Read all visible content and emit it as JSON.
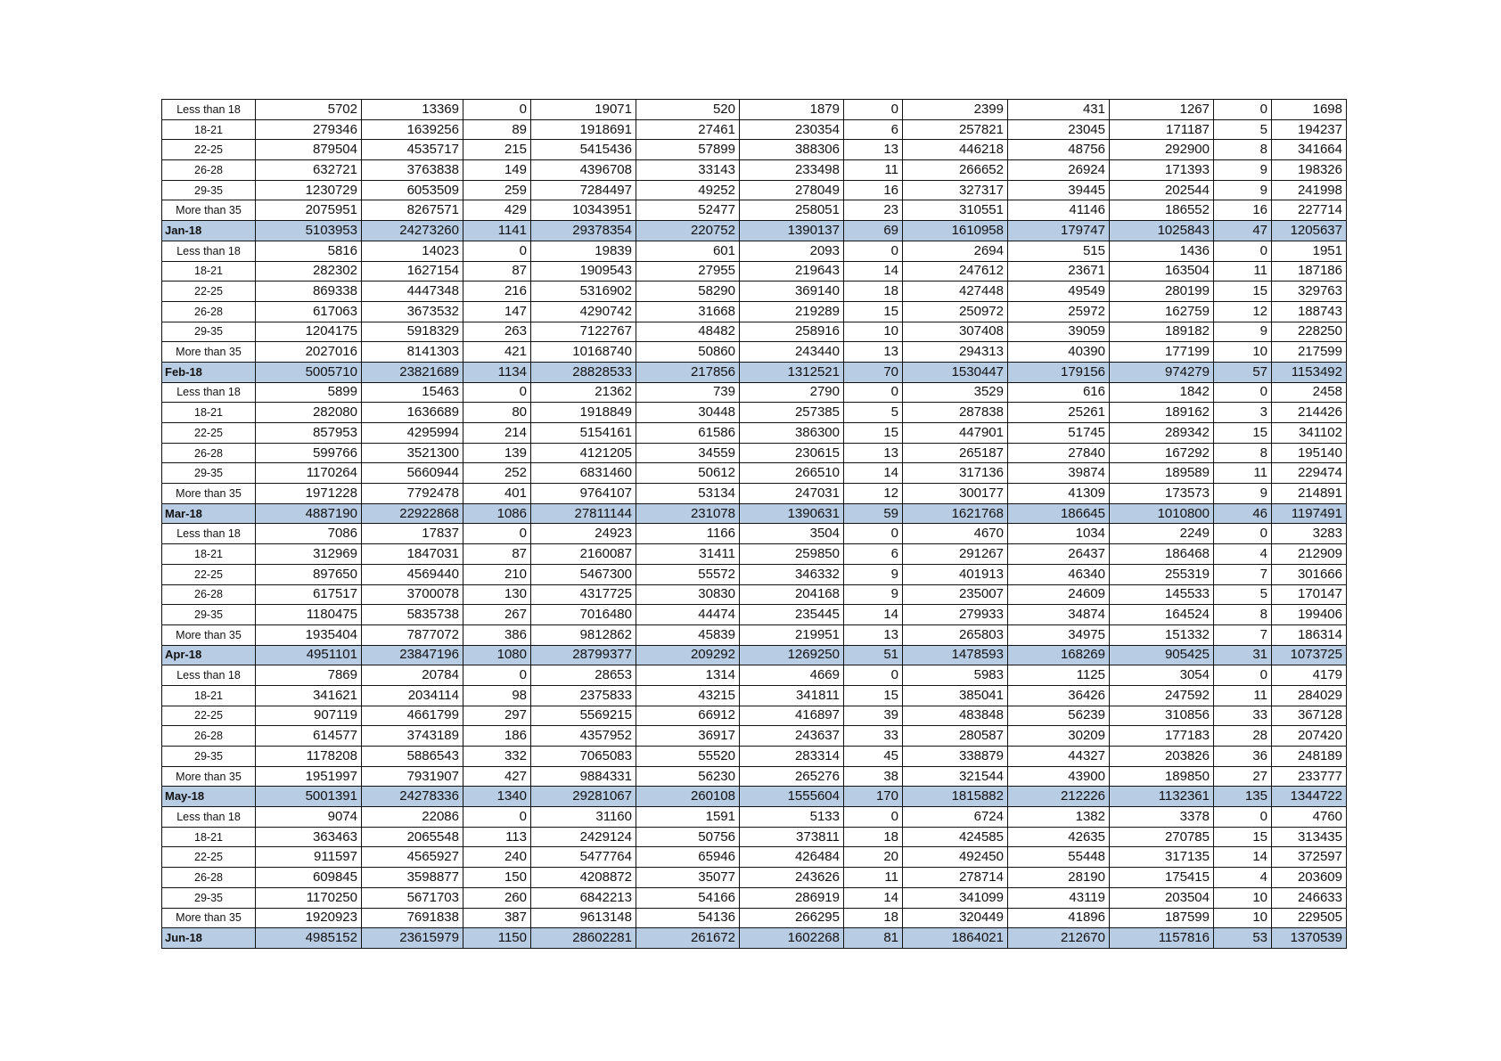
{
  "table": {
    "row_fill_color": "#b8cce4",
    "rows": [
      {
        "label": "Less than 18",
        "values": [
          5702,
          13369,
          0,
          19071,
          520,
          1879,
          0,
          2399,
          431,
          1267,
          0,
          1698
        ],
        "total": false
      },
      {
        "label": "18-21",
        "values": [
          279346,
          1639256,
          89,
          1918691,
          27461,
          230354,
          6,
          257821,
          23045,
          171187,
          5,
          194237
        ],
        "total": false
      },
      {
        "label": "22-25",
        "values": [
          879504,
          4535717,
          215,
          5415436,
          57899,
          388306,
          13,
          446218,
          48756,
          292900,
          8,
          341664
        ],
        "total": false
      },
      {
        "label": "26-28",
        "values": [
          632721,
          3763838,
          149,
          4396708,
          33143,
          233498,
          11,
          266652,
          26924,
          171393,
          9,
          198326
        ],
        "total": false
      },
      {
        "label": "29-35",
        "values": [
          1230729,
          6053509,
          259,
          7284497,
          49252,
          278049,
          16,
          327317,
          39445,
          202544,
          9,
          241998
        ],
        "total": false
      },
      {
        "label": "More than 35",
        "values": [
          2075951,
          8267571,
          429,
          10343951,
          52477,
          258051,
          23,
          310551,
          41146,
          186552,
          16,
          227714
        ],
        "total": false
      },
      {
        "label": "Jan-18",
        "values": [
          5103953,
          24273260,
          1141,
          29378354,
          220752,
          1390137,
          69,
          1610958,
          179747,
          1025843,
          47,
          1205637
        ],
        "total": true
      },
      {
        "label": "Less than 18",
        "values": [
          5816,
          14023,
          0,
          19839,
          601,
          2093,
          0,
          2694,
          515,
          1436,
          0,
          1951
        ],
        "total": false
      },
      {
        "label": "18-21",
        "values": [
          282302,
          1627154,
          87,
          1909543,
          27955,
          219643,
          14,
          247612,
          23671,
          163504,
          11,
          187186
        ],
        "total": false
      },
      {
        "label": "22-25",
        "values": [
          869338,
          4447348,
          216,
          5316902,
          58290,
          369140,
          18,
          427448,
          49549,
          280199,
          15,
          329763
        ],
        "total": false
      },
      {
        "label": "26-28",
        "values": [
          617063,
          3673532,
          147,
          4290742,
          31668,
          219289,
          15,
          250972,
          25972,
          162759,
          12,
          188743
        ],
        "total": false
      },
      {
        "label": "29-35",
        "values": [
          1204175,
          5918329,
          263,
          7122767,
          48482,
          258916,
          10,
          307408,
          39059,
          189182,
          9,
          228250
        ],
        "total": false
      },
      {
        "label": "More than 35",
        "values": [
          2027016,
          8141303,
          421,
          10168740,
          50860,
          243440,
          13,
          294313,
          40390,
          177199,
          10,
          217599
        ],
        "total": false
      },
      {
        "label": "Feb-18",
        "values": [
          5005710,
          23821689,
          1134,
          28828533,
          217856,
          1312521,
          70,
          1530447,
          179156,
          974279,
          57,
          1153492
        ],
        "total": true
      },
      {
        "label": "Less than 18",
        "values": [
          5899,
          15463,
          0,
          21362,
          739,
          2790,
          0,
          3529,
          616,
          1842,
          0,
          2458
        ],
        "total": false
      },
      {
        "label": "18-21",
        "values": [
          282080,
          1636689,
          80,
          1918849,
          30448,
          257385,
          5,
          287838,
          25261,
          189162,
          3,
          214426
        ],
        "total": false
      },
      {
        "label": "22-25",
        "values": [
          857953,
          4295994,
          214,
          5154161,
          61586,
          386300,
          15,
          447901,
          51745,
          289342,
          15,
          341102
        ],
        "total": false
      },
      {
        "label": "26-28",
        "values": [
          599766,
          3521300,
          139,
          4121205,
          34559,
          230615,
          13,
          265187,
          27840,
          167292,
          8,
          195140
        ],
        "total": false
      },
      {
        "label": "29-35",
        "values": [
          1170264,
          5660944,
          252,
          6831460,
          50612,
          266510,
          14,
          317136,
          39874,
          189589,
          11,
          229474
        ],
        "total": false
      },
      {
        "label": "More than 35",
        "values": [
          1971228,
          7792478,
          401,
          9764107,
          53134,
          247031,
          12,
          300177,
          41309,
          173573,
          9,
          214891
        ],
        "total": false
      },
      {
        "label": "Mar-18",
        "values": [
          4887190,
          22922868,
          1086,
          27811144,
          231078,
          1390631,
          59,
          1621768,
          186645,
          1010800,
          46,
          1197491
        ],
        "total": true
      },
      {
        "label": "Less than 18",
        "values": [
          7086,
          17837,
          0,
          24923,
          1166,
          3504,
          0,
          4670,
          1034,
          2249,
          0,
          3283
        ],
        "total": false
      },
      {
        "label": "18-21",
        "values": [
          312969,
          1847031,
          87,
          2160087,
          31411,
          259850,
          6,
          291267,
          26437,
          186468,
          4,
          212909
        ],
        "total": false
      },
      {
        "label": "22-25",
        "values": [
          897650,
          4569440,
          210,
          5467300,
          55572,
          346332,
          9,
          401913,
          46340,
          255319,
          7,
          301666
        ],
        "total": false
      },
      {
        "label": "26-28",
        "values": [
          617517,
          3700078,
          130,
          4317725,
          30830,
          204168,
          9,
          235007,
          24609,
          145533,
          5,
          170147
        ],
        "total": false
      },
      {
        "label": "29-35",
        "values": [
          1180475,
          5835738,
          267,
          7016480,
          44474,
          235445,
          14,
          279933,
          34874,
          164524,
          8,
          199406
        ],
        "total": false
      },
      {
        "label": "More than 35",
        "values": [
          1935404,
          7877072,
          386,
          9812862,
          45839,
          219951,
          13,
          265803,
          34975,
          151332,
          7,
          186314
        ],
        "total": false
      },
      {
        "label": "Apr-18",
        "values": [
          4951101,
          23847196,
          1080,
          28799377,
          209292,
          1269250,
          51,
          1478593,
          168269,
          905425,
          31,
          1073725
        ],
        "total": true
      },
      {
        "label": "Less than 18",
        "values": [
          7869,
          20784,
          0,
          28653,
          1314,
          4669,
          0,
          5983,
          1125,
          3054,
          0,
          4179
        ],
        "total": false
      },
      {
        "label": "18-21",
        "values": [
          341621,
          2034114,
          98,
          2375833,
          43215,
          341811,
          15,
          385041,
          36426,
          247592,
          11,
          284029
        ],
        "total": false
      },
      {
        "label": "22-25",
        "values": [
          907119,
          4661799,
          297,
          5569215,
          66912,
          416897,
          39,
          483848,
          56239,
          310856,
          33,
          367128
        ],
        "total": false
      },
      {
        "label": "26-28",
        "values": [
          614577,
          3743189,
          186,
          4357952,
          36917,
          243637,
          33,
          280587,
          30209,
          177183,
          28,
          207420
        ],
        "total": false
      },
      {
        "label": "29-35",
        "values": [
          1178208,
          5886543,
          332,
          7065083,
          55520,
          283314,
          45,
          338879,
          44327,
          203826,
          36,
          248189
        ],
        "total": false
      },
      {
        "label": "More than 35",
        "values": [
          1951997,
          7931907,
          427,
          9884331,
          56230,
          265276,
          38,
          321544,
          43900,
          189850,
          27,
          233777
        ],
        "total": false
      },
      {
        "label": "May-18",
        "values": [
          5001391,
          24278336,
          1340,
          29281067,
          260108,
          1555604,
          170,
          1815882,
          212226,
          1132361,
          135,
          1344722
        ],
        "total": true
      },
      {
        "label": "Less than 18",
        "values": [
          9074,
          22086,
          0,
          31160,
          1591,
          5133,
          0,
          6724,
          1382,
          3378,
          0,
          4760
        ],
        "total": false
      },
      {
        "label": "18-21",
        "values": [
          363463,
          2065548,
          113,
          2429124,
          50756,
          373811,
          18,
          424585,
          42635,
          270785,
          15,
          313435
        ],
        "total": false
      },
      {
        "label": "22-25",
        "values": [
          911597,
          4565927,
          240,
          5477764,
          65946,
          426484,
          20,
          492450,
          55448,
          317135,
          14,
          372597
        ],
        "total": false
      },
      {
        "label": "26-28",
        "values": [
          609845,
          3598877,
          150,
          4208872,
          35077,
          243626,
          11,
          278714,
          28190,
          175415,
          4,
          203609
        ],
        "total": false
      },
      {
        "label": "29-35",
        "values": [
          1170250,
          5671703,
          260,
          6842213,
          54166,
          286919,
          14,
          341099,
          43119,
          203504,
          10,
          246633
        ],
        "total": false
      },
      {
        "label": "More than 35",
        "values": [
          1920923,
          7691838,
          387,
          9613148,
          54136,
          266295,
          18,
          320449,
          41896,
          187599,
          10,
          229505
        ],
        "total": false
      },
      {
        "label": "Jun-18",
        "values": [
          4985152,
          23615979,
          1150,
          28602281,
          261672,
          1602268,
          81,
          1864021,
          212670,
          1157816,
          53,
          1370539
        ],
        "total": true
      }
    ]
  }
}
